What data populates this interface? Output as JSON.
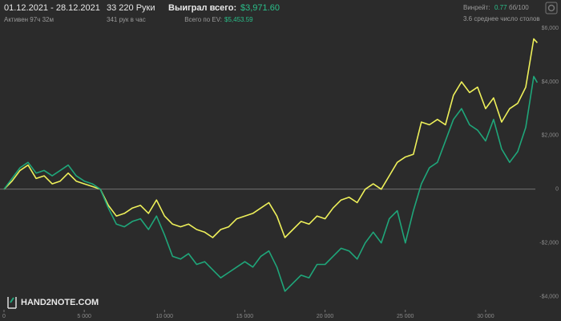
{
  "header": {
    "date_range": "01.12.2021 - 28.12.2021",
    "active_time": "Активен 97ч 32м",
    "hands": "33 220 Руки",
    "hands_per_hour": "341 рук в час",
    "won_label": "Выиграл всего:",
    "won_value": "$3,971.60",
    "ev_label": "Всего по EV:",
    "ev_value": "$5,453.59",
    "winrate_label": "Винрейт:",
    "winrate_value": "0.77",
    "winrate_unit": "бб/100",
    "avg_tables": "3.6 среднее число столов",
    "logo": "HAND2NOTE.COM"
  },
  "chart_data": {
    "type": "line",
    "x": [
      0,
      500,
      1000,
      1500,
      2000,
      2500,
      3000,
      3500,
      4000,
      4500,
      5000,
      5500,
      6000,
      6500,
      7000,
      7500,
      8000,
      8500,
      9000,
      9500,
      10000,
      10500,
      11000,
      11500,
      12000,
      12500,
      13000,
      13500,
      14000,
      14500,
      15000,
      15500,
      16000,
      16500,
      17000,
      17500,
      18000,
      18500,
      19000,
      19500,
      20000,
      20500,
      21000,
      21500,
      22000,
      22500,
      23000,
      23500,
      24000,
      24500,
      25000,
      25500,
      26000,
      26500,
      27000,
      27500,
      28000,
      28500,
      29000,
      29500,
      30000,
      30500,
      31000,
      31500,
      32000,
      32500,
      33000,
      33220
    ],
    "series": [
      {
        "color": "#eef05a",
        "values": [
          0,
          300,
          700,
          900,
          400,
          500,
          200,
          300,
          600,
          300,
          200,
          100,
          0,
          -600,
          -1000,
          -900,
          -700,
          -600,
          -900,
          -400,
          -1000,
          -1300,
          -1400,
          -1300,
          -1500,
          -1600,
          -1800,
          -1500,
          -1400,
          -1100,
          -1000,
          -900,
          -700,
          -500,
          -1000,
          -1800,
          -1500,
          -1200,
          -1300,
          -1000,
          -1100,
          -700,
          -400,
          -300,
          -500,
          0,
          200,
          0,
          500,
          1000,
          1200,
          1300,
          2500,
          2400,
          2600,
          2400,
          3500,
          4000,
          3600,
          3800,
          3000,
          3400,
          2500,
          3000,
          3200,
          3800,
          5600,
          5454
        ]
      },
      {
        "color": "#1fa67a",
        "values": [
          0,
          400,
          800,
          1000,
          600,
          700,
          500,
          700,
          900,
          500,
          300,
          200,
          0,
          -700,
          -1300,
          -1400,
          -1200,
          -1100,
          -1500,
          -1000,
          -1700,
          -2500,
          -2600,
          -2400,
          -2800,
          -2700,
          -3000,
          -3300,
          -3100,
          -2900,
          -2700,
          -2900,
          -2500,
          -2300,
          -2900,
          -3800,
          -3500,
          -3200,
          -3300,
          -2800,
          -2800,
          -2500,
          -2200,
          -2300,
          -2600,
          -2000,
          -1600,
          -2000,
          -1100,
          -800,
          -2000,
          -800,
          200,
          800,
          1000,
          1800,
          2600,
          3000,
          2400,
          2200,
          1800,
          2600,
          1500,
          1000,
          1400,
          2300,
          4200,
          3972
        ]
      }
    ],
    "xlim": [
      0,
      33300
    ],
    "ylim": [
      -4400,
      6300
    ],
    "xticks": [
      0,
      {
        "value": 5000,
        "label": "5 000"
      },
      {
        "value": 10000,
        "label": "10 000"
      },
      {
        "value": 15000,
        "label": "15 000"
      },
      {
        "value": 20000,
        "label": "20 000"
      },
      {
        "value": 25000,
        "label": "25 000"
      },
      {
        "value": 30000,
        "label": "30 000"
      }
    ],
    "yticks": [
      {
        "value": 6000,
        "label": "$6,000"
      },
      {
        "value": 4000,
        "label": "$4,000"
      },
      {
        "value": 2000,
        "label": "$2,000"
      },
      0,
      {
        "value": -2000,
        "label": "-$2,000"
      },
      {
        "value": -4000,
        "label": "-$4,000"
      }
    ]
  }
}
